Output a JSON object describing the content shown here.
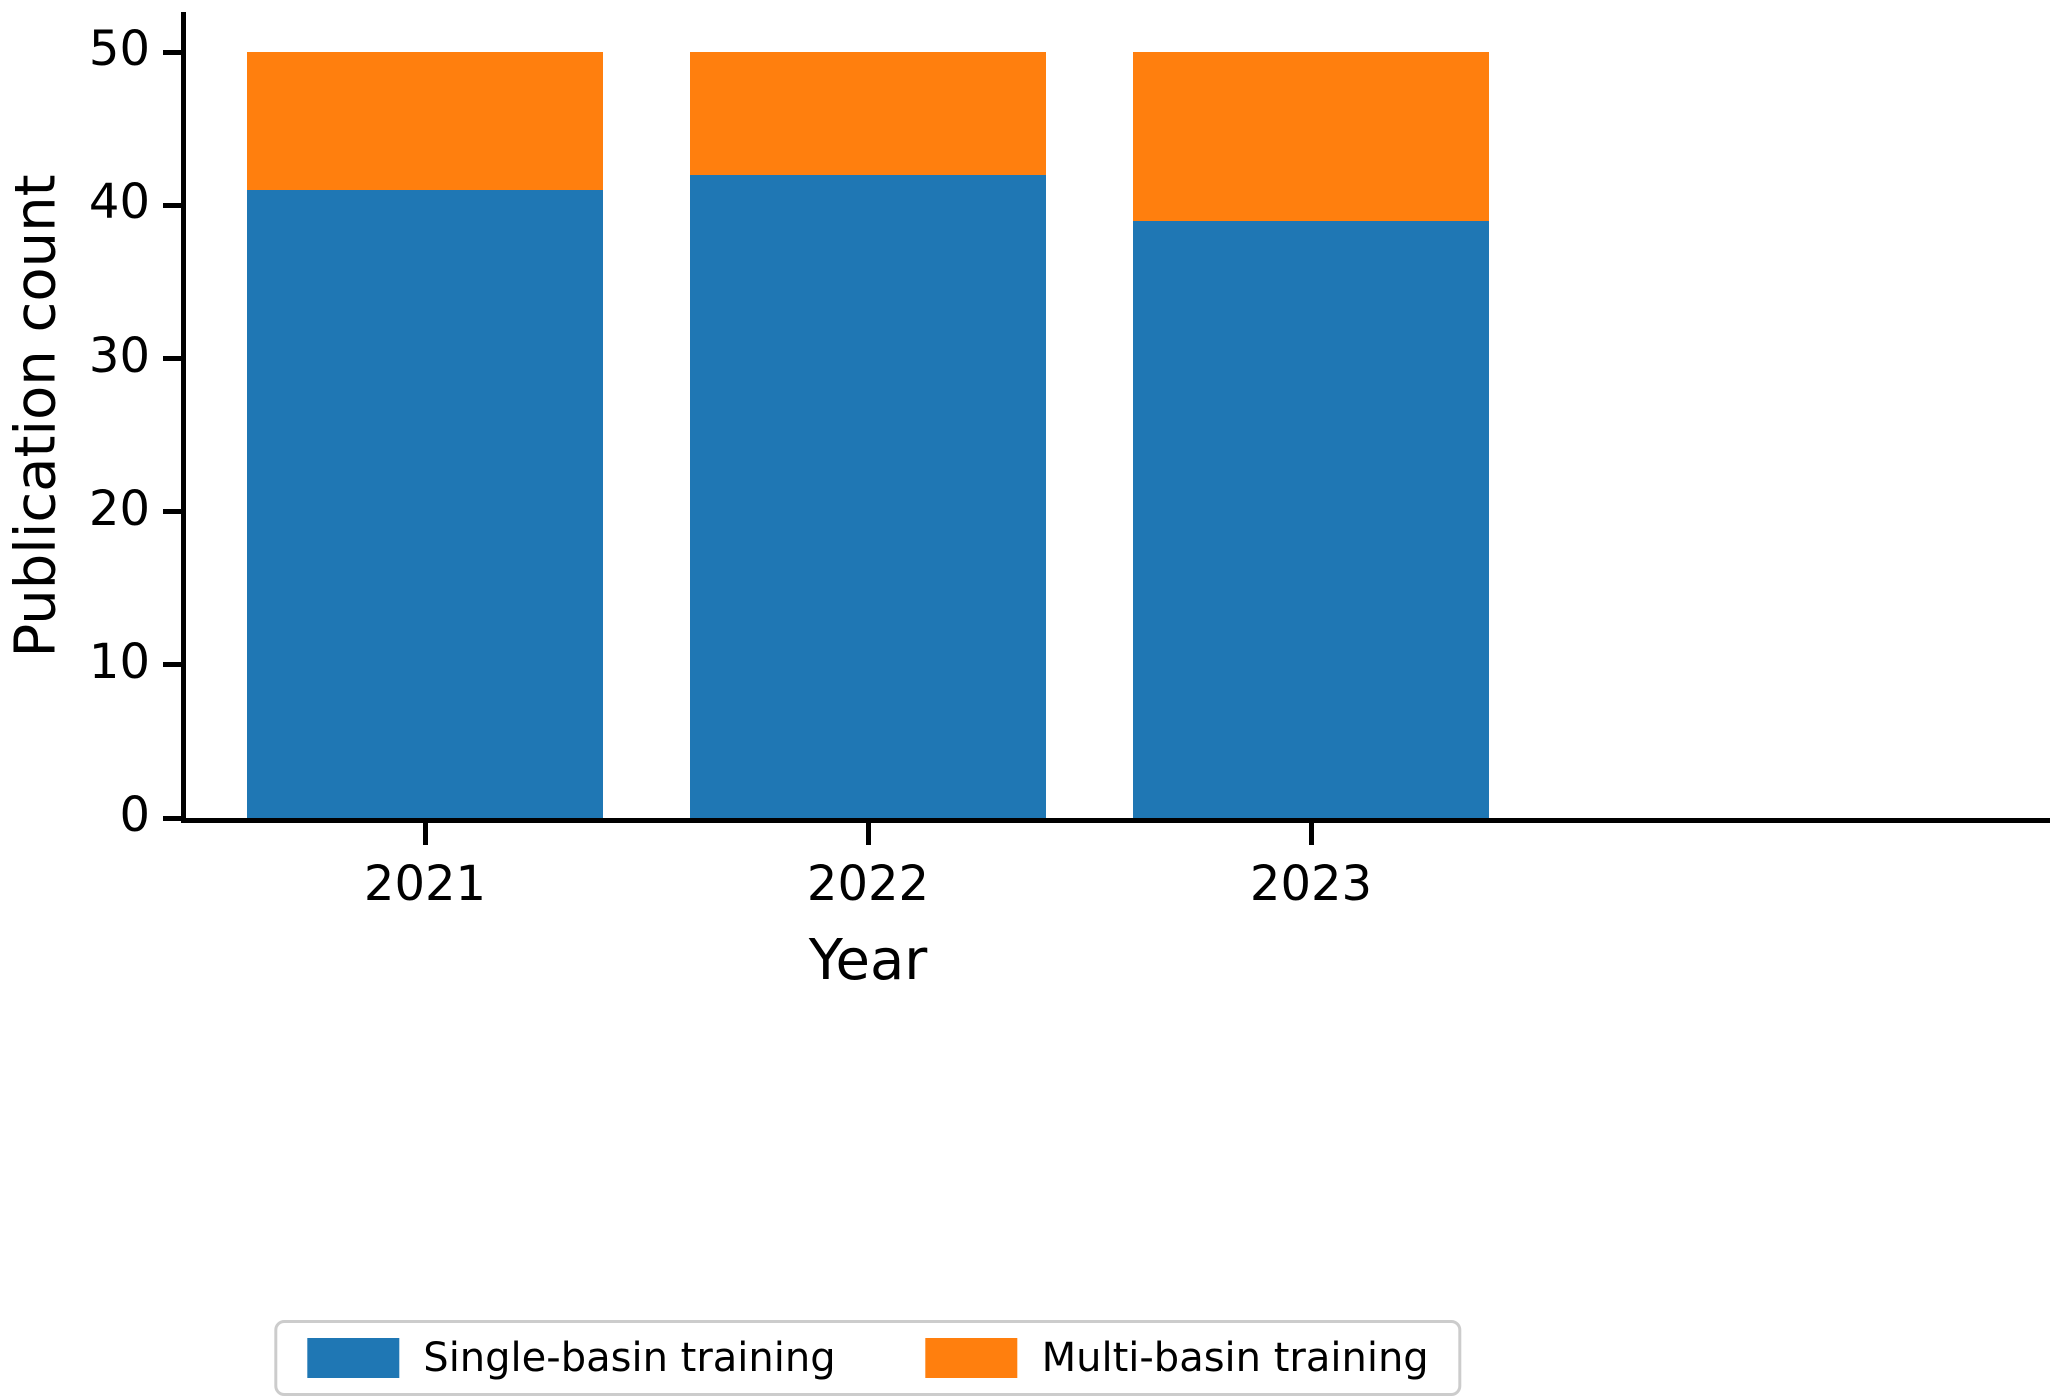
{
  "chart_data": {
    "type": "bar",
    "stacked": true,
    "title": "",
    "xlabel": "Year",
    "ylabel": "Publication count",
    "categories": [
      "2021",
      "2022",
      "2023"
    ],
    "series": [
      {
        "name": "Single-basin training",
        "color": "#1f77b4",
        "values": [
          41,
          42,
          39
        ]
      },
      {
        "name": "Multi-basin training",
        "color": "#ff7f0e",
        "values": [
          9,
          8,
          11
        ]
      }
    ],
    "bar_totals": [
      50,
      50,
      50
    ],
    "yticks": [
      0,
      10,
      20,
      30,
      40,
      50
    ],
    "ylim": [
      0,
      52.5
    ],
    "grid": false,
    "legend_position": "bottom-center"
  },
  "colors": {
    "axis": "#000000",
    "background": "#ffffff",
    "legend_border": "#cccccc"
  }
}
